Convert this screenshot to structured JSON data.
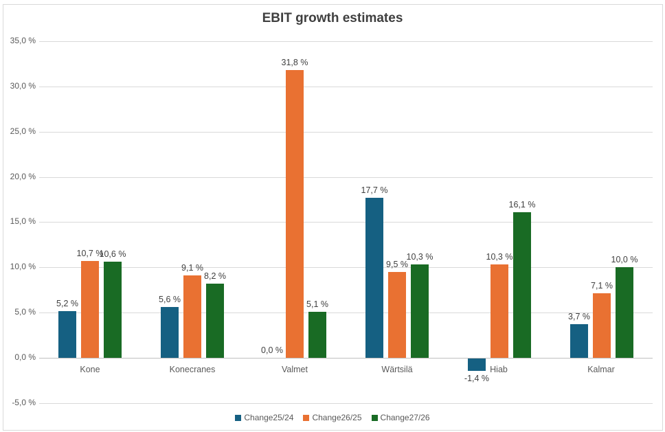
{
  "title": "EBIT growth estimates",
  "colors": {
    "series_blue": "#156082",
    "series_orange": "#E97132",
    "series_green": "#196B24",
    "gridline": "#D9D9D9",
    "zero_axis": "#BFBFBF",
    "title_text": "#3F3F3F",
    "axis_text": "#595959",
    "data_label_text": "#404040",
    "border": "#D9D9D9"
  },
  "chart_data": {
    "type": "bar",
    "title": "EBIT growth estimates",
    "xlabel": "",
    "ylabel": "",
    "grid": "horizontal",
    "legend_position": "bottom",
    "categories": [
      "Kone",
      "Konecranes",
      "Valmet",
      "Wärtsilä",
      "Hiab",
      "Kalmar"
    ],
    "series": [
      {
        "name": "Change25/24",
        "color": "#156082",
        "values": [
          5.2,
          5.6,
          0.0,
          17.7,
          -1.4,
          3.7
        ],
        "labels": [
          "5,2 %",
          "5,6 %",
          "0,0 %",
          "17,7 %",
          "-1,4 %",
          "3,7 %"
        ]
      },
      {
        "name": "Change26/25",
        "color": "#E97132",
        "values": [
          10.7,
          9.1,
          31.8,
          9.5,
          10.3,
          7.1
        ],
        "labels": [
          "10,7 %",
          "9,1 %",
          "31,8 %",
          "9,5 %",
          "10,3 %",
          "7,1 %"
        ]
      },
      {
        "name": "Change27/26",
        "color": "#196B24",
        "values": [
          10.6,
          8.2,
          5.1,
          10.3,
          16.1,
          10.0
        ],
        "labels": [
          "10,6 %",
          "8,2 %",
          "5,1 %",
          "10,3 %",
          "16,1 %",
          "10,0 %"
        ]
      }
    ],
    "y_axis": {
      "min": -5,
      "max": 35,
      "step": 5,
      "tick_labels": [
        "-5,0 %",
        "0,0 %",
        "5,0 %",
        "10,0 %",
        "15,0 %",
        "20,0 %",
        "25,0 %",
        "30,0 %",
        "35,0 %"
      ]
    }
  }
}
